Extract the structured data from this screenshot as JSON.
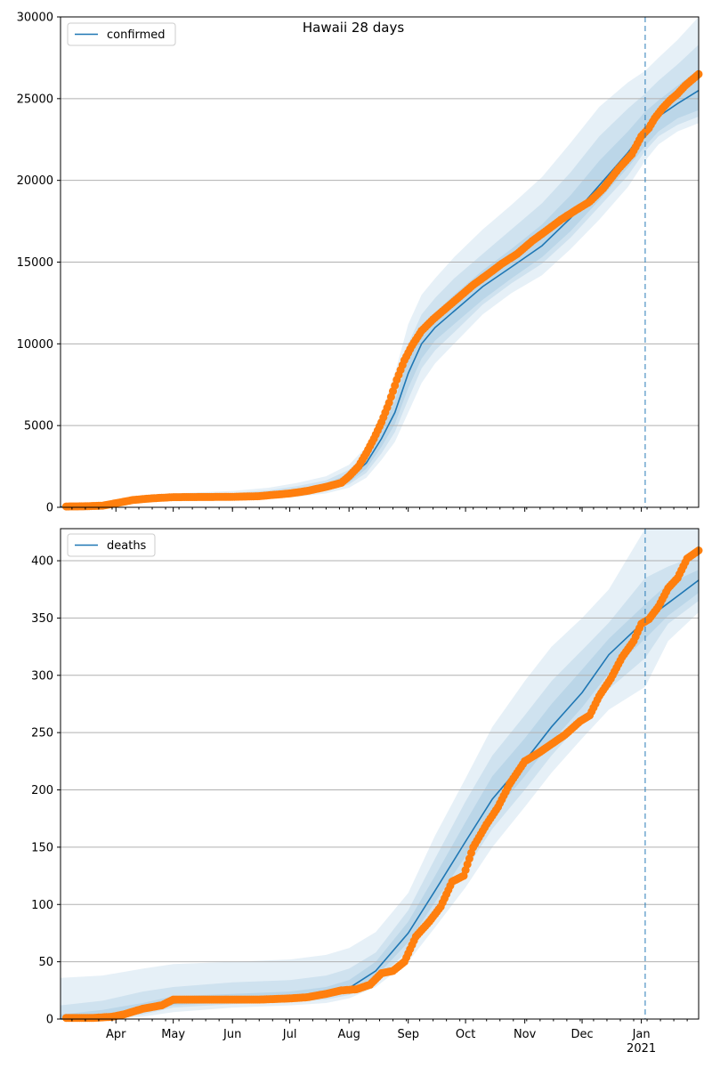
{
  "figure_title": "Hawaii 28 days",
  "colors": {
    "model_line": "#1f77b4",
    "band_fill": "#1f77b4",
    "observed_points": "#ff7f0e",
    "forecast_start_line": "#1f77b4",
    "grid": "#b0b0b0"
  },
  "x_axis": {
    "range": [
      "2020-03-03",
      "2021-01-31"
    ],
    "month_ticks": [
      {
        "date": "2020-04-01",
        "label": "Apr"
      },
      {
        "date": "2020-05-01",
        "label": "May"
      },
      {
        "date": "2020-06-01",
        "label": "Jun"
      },
      {
        "date": "2020-07-01",
        "label": "Jul"
      },
      {
        "date": "2020-08-01",
        "label": "Aug"
      },
      {
        "date": "2020-09-01",
        "label": "Sep"
      },
      {
        "date": "2020-10-01",
        "label": "Oct"
      },
      {
        "date": "2020-11-01",
        "label": "Nov"
      },
      {
        "date": "2020-12-01",
        "label": "Dec"
      },
      {
        "date": "2021-01-01",
        "label": "Jan"
      }
    ],
    "year_label": "2021",
    "forecast_start": "2021-01-03"
  },
  "chart_data": [
    {
      "type": "line",
      "legend_label": "confirmed",
      "legend_position": "upper-left",
      "ylim": [
        0,
        30000
      ],
      "yticks": [
        0,
        5000,
        10000,
        15000,
        20000,
        25000,
        30000
      ],
      "grid": "horizontal",
      "model": {
        "x": [
          "2020-03-03",
          "2020-03-25",
          "2020-04-10",
          "2020-05-01",
          "2020-06-01",
          "2020-06-20",
          "2020-07-05",
          "2020-07-20",
          "2020-08-01",
          "2020-08-10",
          "2020-08-18",
          "2020-08-25",
          "2020-09-01",
          "2020-09-08",
          "2020-09-15",
          "2020-09-25",
          "2020-10-10",
          "2020-10-25",
          "2020-11-10",
          "2020-11-25",
          "2020-12-10",
          "2020-12-25",
          "2021-01-03",
          "2021-01-10",
          "2021-01-20",
          "2021-01-31"
        ],
        "y": [
          20,
          200,
          450,
          600,
          650,
          750,
          950,
          1250,
          1800,
          2700,
          4200,
          5800,
          8200,
          10000,
          11000,
          12000,
          13500,
          14700,
          16000,
          17700,
          19700,
          21700,
          23100,
          23900,
          24700,
          25500
        ],
        "band_outer_upper": [
          80,
          320,
          650,
          850,
          1000,
          1200,
          1500,
          1900,
          2600,
          3700,
          5800,
          8200,
          11200,
          13000,
          14000,
          15300,
          17000,
          18500,
          20200,
          22300,
          24500,
          26000,
          26700,
          27500,
          28600,
          30000
        ],
        "band_outer_lower": [
          5,
          120,
          300,
          420,
          450,
          520,
          650,
          850,
          1200,
          1800,
          2900,
          4000,
          5800,
          7600,
          8800,
          10000,
          11800,
          13100,
          14200,
          15800,
          17600,
          19600,
          21200,
          22200,
          23000,
          23500
        ],
        "band_mid_upper": [
          60,
          280,
          580,
          750,
          870,
          1040,
          1300,
          1650,
          2300,
          3300,
          5200,
          7200,
          10000,
          11800,
          12800,
          14000,
          15500,
          17000,
          18600,
          20500,
          22700,
          24400,
          25300,
          26100,
          27100,
          28300
        ],
        "band_mid_lower": [
          8,
          150,
          350,
          480,
          520,
          600,
          750,
          1000,
          1400,
          2100,
          3300,
          4600,
          6600,
          8500,
          9600,
          10700,
          12400,
          13700,
          14900,
          16500,
          18400,
          20300,
          21800,
          22700,
          23400,
          23900
        ],
        "band_inner_upper": [
          40,
          240,
          520,
          680,
          760,
          880,
          1130,
          1450,
          2050,
          3000,
          4700,
          6500,
          9100,
          10900,
          11900,
          13000,
          14500,
          15800,
          17300,
          19100,
          21200,
          23000,
          24200,
          24900,
          25800,
          26800
        ],
        "band_inner_lower": [
          12,
          170,
          390,
          530,
          560,
          640,
          800,
          1070,
          1520,
          2350,
          3700,
          5100,
          7300,
          9100,
          10200,
          11200,
          12700,
          14000,
          15300,
          16900,
          18800,
          20800,
          22100,
          23000,
          23800,
          24300
        ]
      },
      "observed": {
        "x": [
          "2020-03-06",
          "2020-03-15",
          "2020-03-25",
          "2020-04-01",
          "2020-04-10",
          "2020-04-20",
          "2020-05-01",
          "2020-05-15",
          "2020-06-01",
          "2020-06-15",
          "2020-07-01",
          "2020-07-10",
          "2020-07-20",
          "2020-07-28",
          "2020-08-01",
          "2020-08-06",
          "2020-08-10",
          "2020-08-14",
          "2020-08-18",
          "2020-08-22",
          "2020-08-26",
          "2020-08-30",
          "2020-09-03",
          "2020-09-08",
          "2020-09-14",
          "2020-09-20",
          "2020-09-28",
          "2020-10-05",
          "2020-10-12",
          "2020-10-20",
          "2020-10-28",
          "2020-11-05",
          "2020-11-12",
          "2020-11-20",
          "2020-11-28",
          "2020-12-05",
          "2020-12-12",
          "2020-12-20",
          "2020-12-27",
          "2021-01-01",
          "2021-01-05",
          "2021-01-08",
          "2021-01-12",
          "2021-01-16",
          "2021-01-20",
          "2021-01-24",
          "2021-01-28",
          "2021-01-31"
        ],
        "y": [
          50,
          60,
          100,
          250,
          450,
          550,
          620,
          630,
          640,
          680,
          850,
          1000,
          1250,
          1500,
          1900,
          2500,
          3300,
          4200,
          5200,
          6400,
          7800,
          9000,
          9900,
          10800,
          11500,
          12100,
          12900,
          13600,
          14200,
          14900,
          15500,
          16300,
          16900,
          17600,
          18200,
          18700,
          19500,
          20700,
          21600,
          22700,
          23200,
          23800,
          24400,
          24900,
          25300,
          25800,
          26200,
          26500
        ]
      }
    },
    {
      "type": "line",
      "legend_label": "deaths",
      "legend_position": "upper-left",
      "ylim": [
        0,
        428
      ],
      "yticks": [
        0,
        50,
        100,
        150,
        200,
        250,
        300,
        350,
        400
      ],
      "grid": "horizontal",
      "model": {
        "x": [
          "2020-03-03",
          "2020-03-25",
          "2020-04-15",
          "2020-05-01",
          "2020-06-01",
          "2020-07-01",
          "2020-07-20",
          "2020-08-01",
          "2020-08-15",
          "2020-09-01",
          "2020-09-15",
          "2020-10-01",
          "2020-10-15",
          "2020-11-01",
          "2020-11-15",
          "2020-12-01",
          "2020-12-15",
          "2021-01-03",
          "2021-01-15",
          "2021-01-31"
        ],
        "y": [
          0,
          2,
          8,
          14,
          17,
          19,
          22,
          27,
          42,
          75,
          112,
          155,
          192,
          225,
          255,
          285,
          318,
          348,
          363,
          383
        ],
        "band_outer_upper": [
          36,
          38,
          44,
          48,
          50,
          52,
          56,
          62,
          76,
          110,
          160,
          210,
          255,
          295,
          325,
          350,
          375,
          428,
          428,
          428
        ],
        "band_outer_lower": [
          0,
          0,
          2,
          6,
          10,
          12,
          14,
          18,
          28,
          50,
          80,
          115,
          150,
          185,
          215,
          245,
          270,
          290,
          330,
          355
        ],
        "band_mid_upper": [
          12,
          16,
          24,
          28,
          32,
          34,
          38,
          44,
          58,
          95,
          140,
          190,
          230,
          265,
          295,
          322,
          346,
          385,
          395,
          405
        ],
        "band_mid_lower": [
          0,
          0,
          4,
          10,
          13,
          15,
          17,
          21,
          33,
          60,
          92,
          130,
          166,
          200,
          230,
          260,
          288,
          315,
          345,
          365
        ],
        "band_inner_upper": [
          4,
          8,
          14,
          20,
          22,
          24,
          28,
          34,
          50,
          85,
          125,
          172,
          212,
          245,
          275,
          305,
          332,
          362,
          380,
          392
        ],
        "band_inner_lower": [
          0,
          1,
          6,
          12,
          15,
          17,
          19,
          24,
          37,
          67,
          102,
          142,
          178,
          212,
          242,
          272,
          302,
          332,
          352,
          372
        ]
      },
      "observed": {
        "x": [
          "2020-03-06",
          "2020-03-20",
          "2020-03-30",
          "2020-04-05",
          "2020-04-15",
          "2020-04-25",
          "2020-05-01",
          "2020-05-15",
          "2020-06-01",
          "2020-06-15",
          "2020-07-01",
          "2020-07-10",
          "2020-07-20",
          "2020-07-28",
          "2020-08-05",
          "2020-08-12",
          "2020-08-18",
          "2020-08-24",
          "2020-08-30",
          "2020-09-05",
          "2020-09-12",
          "2020-09-18",
          "2020-09-24",
          "2020-09-30",
          "2020-10-05",
          "2020-10-12",
          "2020-10-18",
          "2020-10-24",
          "2020-11-01",
          "2020-11-08",
          "2020-11-15",
          "2020-11-22",
          "2020-11-30",
          "2020-12-05",
          "2020-12-10",
          "2020-12-16",
          "2020-12-22",
          "2020-12-28",
          "2021-01-01",
          "2021-01-05",
          "2021-01-10",
          "2021-01-15",
          "2021-01-20",
          "2021-01-25",
          "2021-01-31"
        ],
        "y": [
          1,
          1,
          2,
          4,
          9,
          12,
          17,
          17,
          17,
          17,
          18,
          19,
          22,
          25,
          26,
          30,
          40,
          42,
          50,
          72,
          85,
          98,
          120,
          125,
          150,
          170,
          185,
          205,
          225,
          232,
          240,
          248,
          260,
          265,
          282,
          297,
          316,
          330,
          345,
          349,
          360,
          376,
          385,
          402,
          409
        ]
      }
    }
  ]
}
